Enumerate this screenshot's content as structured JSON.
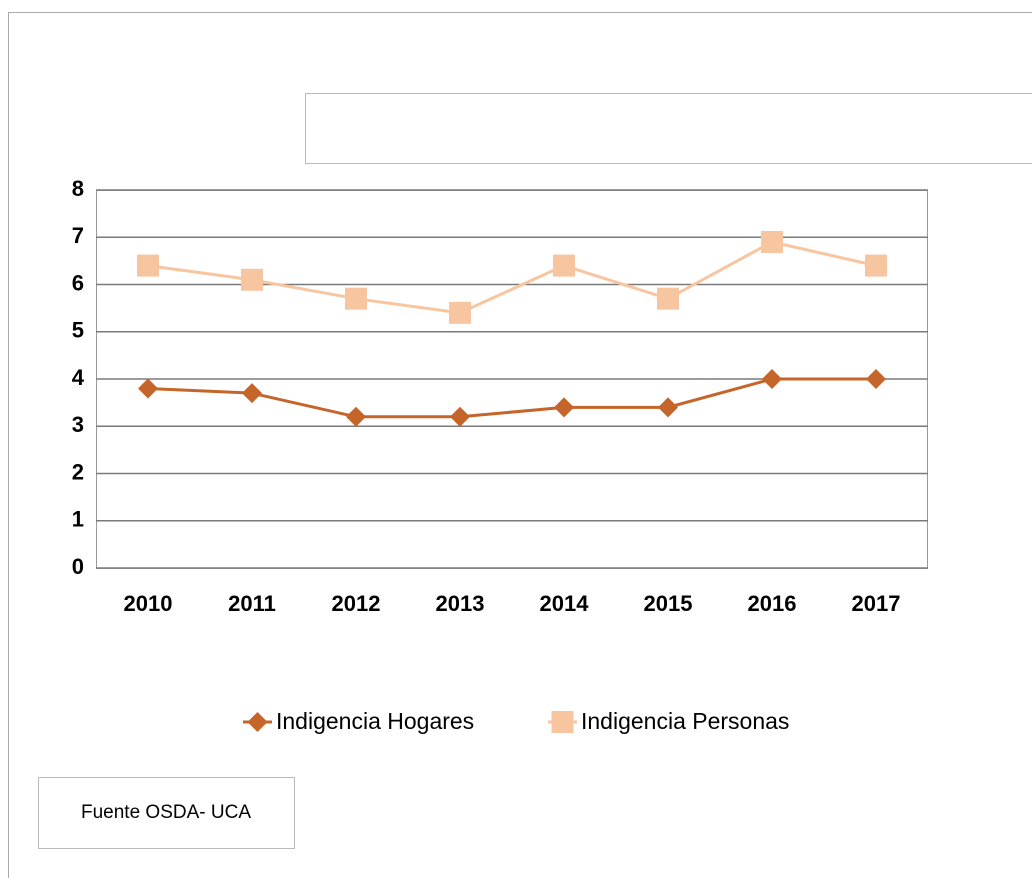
{
  "chart_data": {
    "type": "line",
    "categories": [
      "2010",
      "2011",
      "2012",
      "2013",
      "2014",
      "2015",
      "2016",
      "2017"
    ],
    "series": [
      {
        "name": "Indigencia Hogares",
        "color": "#c5652a",
        "marker": "diamond",
        "values": [
          3.8,
          3.7,
          3.2,
          3.2,
          3.4,
          3.4,
          4.0,
          4.0
        ]
      },
      {
        "name": "Indigencia Personas",
        "color": "#f7c6a0",
        "marker": "square",
        "values": [
          6.4,
          6.1,
          5.7,
          5.4,
          6.4,
          5.7,
          6.9,
          6.4
        ]
      }
    ],
    "ylim": [
      0,
      8
    ],
    "yticks": [
      0,
      1,
      2,
      3,
      4,
      5,
      6,
      7,
      8
    ],
    "grid": true,
    "legend": "bottom",
    "source": "Fuente OSDA- UCA"
  }
}
